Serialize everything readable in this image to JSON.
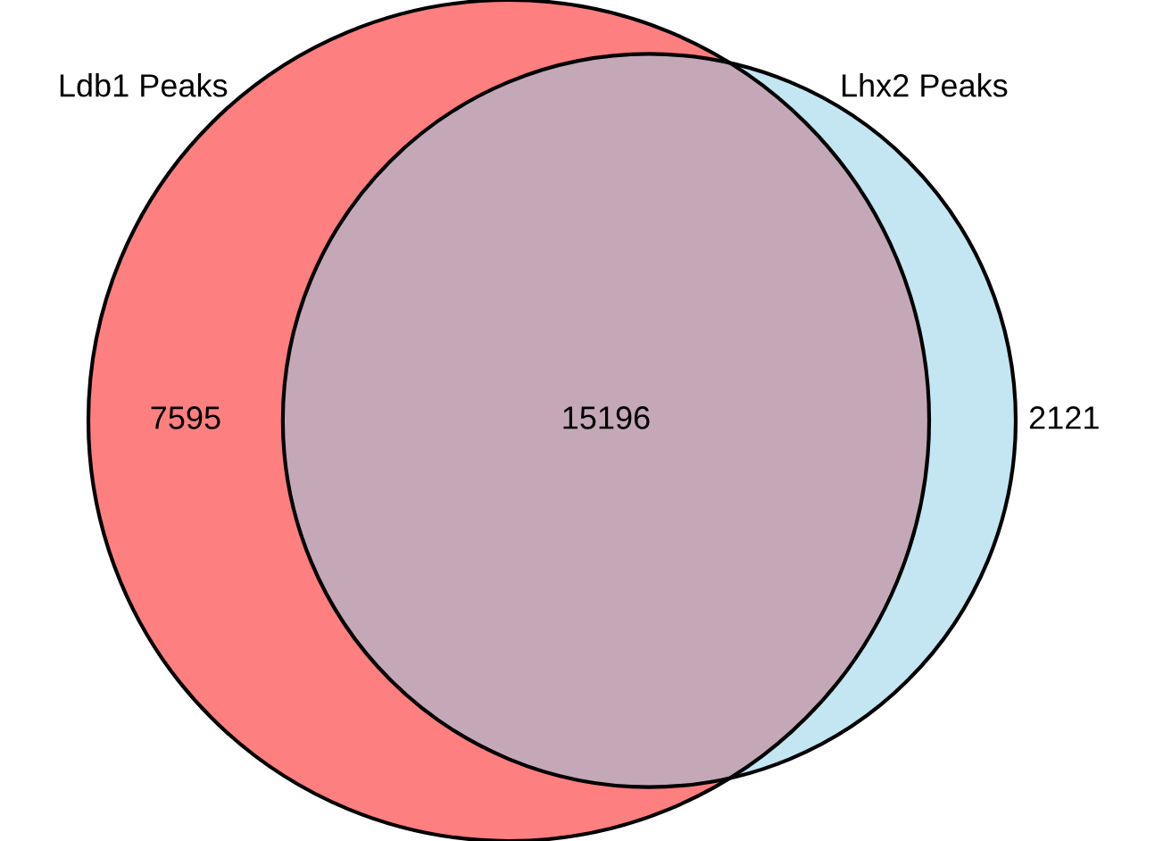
{
  "chart_data": {
    "type": "other",
    "data_labels": true,
    "values": [
      7595,
      15196,
      2121
    ],
    "colors": [
      "#fe7f80",
      "#c4a8b7",
      "#c4e5f2"
    ],
    "annotations": [
      "Ldb1 Peaks",
      "Lhx2 Peaks"
    ]
  }
}
